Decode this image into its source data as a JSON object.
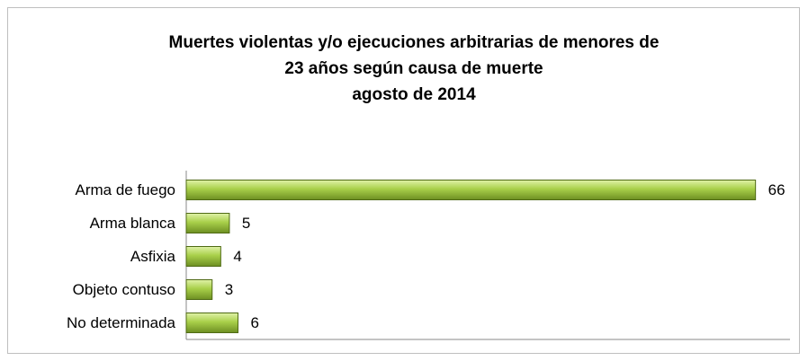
{
  "chart_data": {
    "type": "hbar",
    "title": [
      "Muertes violentas y/o ejecuciones arbitrarias de menores de",
      "23 años según causa de muerte",
      "agosto de 2014"
    ],
    "categories": [
      "Arma de fuego",
      "Arma blanca",
      "Asfixia",
      "Objeto contuso",
      "No determinada"
    ],
    "values": [
      66,
      5,
      4,
      3,
      6
    ],
    "color": "#9bc43c",
    "xlim": [
      0,
      70
    ]
  }
}
